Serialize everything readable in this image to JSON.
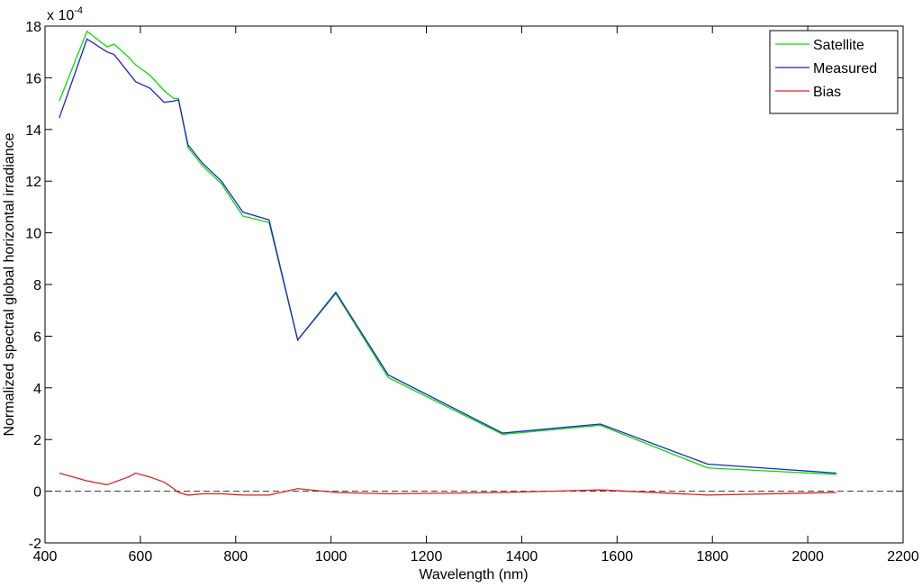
{
  "chart_data": {
    "type": "line",
    "x_label": "Wavelength (nm)",
    "y_label": "Normalized spectral global horizontal irradiance",
    "y_multiplier": {
      "base": "x 10",
      "exponent": "-4"
    },
    "x": [
      430,
      488,
      530,
      545,
      575,
      590,
      620,
      650,
      670,
      680,
      700,
      730,
      770,
      815,
      870,
      930,
      1010,
      1120,
      1360,
      1565,
      1790,
      2060
    ],
    "series": [
      {
        "name": "Satellite",
        "color": "#00e000",
        "values": [
          15.1,
          17.8,
          17.2,
          17.3,
          16.8,
          16.5,
          16.1,
          15.5,
          15.2,
          15.2,
          13.3,
          12.6,
          11.9,
          10.65,
          10.4,
          5.85,
          7.65,
          4.4,
          2.2,
          2.55,
          0.9,
          0.65
        ]
      },
      {
        "name": "Measured",
        "color": "#2020d0",
        "values": [
          14.45,
          17.5,
          17.0,
          16.9,
          16.2,
          15.85,
          15.6,
          15.05,
          15.1,
          15.15,
          13.4,
          12.7,
          12.0,
          10.8,
          10.5,
          5.85,
          7.7,
          4.5,
          2.25,
          2.6,
          1.05,
          0.7
        ]
      },
      {
        "name": "Bias",
        "color": "#e02020",
        "values": [
          0.7,
          0.4,
          0.25,
          0.35,
          0.55,
          0.7,
          0.55,
          0.35,
          0.1,
          -0.05,
          -0.15,
          -0.1,
          -0.1,
          -0.15,
          -0.15,
          0.1,
          -0.05,
          -0.1,
          -0.05,
          0.05,
          -0.15,
          -0.05
        ]
      }
    ],
    "reference_line": 0,
    "xlim": [
      400,
      2200
    ],
    "xticks": [
      400,
      600,
      800,
      1000,
      1200,
      1400,
      1600,
      1800,
      2000,
      2200
    ],
    "ylim": [
      -2,
      18
    ],
    "yticks": [
      -2,
      0,
      2,
      4,
      6,
      8,
      10,
      12,
      14,
      16,
      18
    ],
    "legend": "northeast",
    "grid": false
  }
}
